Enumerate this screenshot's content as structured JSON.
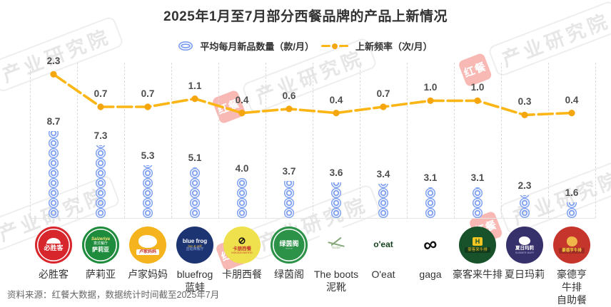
{
  "title": "2025年1月至7月部分西餐品牌的产品上新情况",
  "legend": {
    "series1_label": "平均每月新品数量（款/月）",
    "series2_label": "上新频率（次/月）"
  },
  "source": "资料来源：红餐大数据，数据统计时间截至2025年7月",
  "watermark": {
    "logo_text": "红餐",
    "text": "产业研究院"
  },
  "colors": {
    "ring_blue": "#7B9EF0",
    "line_orange": "#FBB615",
    "dot_orange": "#F6A60D",
    "grid": "#DBDBDB",
    "text_dark": "#333333",
    "value_label": "#4D4D4D"
  },
  "chart_data": {
    "type": "line",
    "note": "pictogram column chart (stacked blue rings) + dashed orange line, dual series",
    "categories": [
      "必胜客",
      "萨莉亚",
      "卢家妈妈",
      "bluefrog蓝蛙",
      "卡朋西餐",
      "绿茵阁",
      "The boots泥靴",
      "O'eat",
      "gaga",
      "豪客来牛排",
      "夏日玛莉",
      "豪德亨牛排自助餐厅"
    ],
    "series": [
      {
        "name": "平均每月新品数量（款/月）",
        "style": "ring-pictogram",
        "values": [
          8.7,
          7.3,
          5.3,
          5.1,
          4.0,
          3.7,
          3.6,
          3.4,
          3.1,
          3.1,
          2.3,
          1.6
        ]
      },
      {
        "name": "上新频率（次/月）",
        "style": "dashed-line",
        "values": [
          2.3,
          0.7,
          0.7,
          1.1,
          0.4,
          0.6,
          0.4,
          0.7,
          1.0,
          1.0,
          0.3,
          0.4
        ]
      }
    ],
    "grid": "vertical-dashed",
    "legend_position": "top-center"
  },
  "brands": [
    {
      "label": "必胜客",
      "logo": {
        "bg": "#D7262C",
        "ring": true,
        "items": [
          {
            "shape": "arc",
            "c": "#ffffff",
            "w": 20,
            "h": 8
          },
          {
            "t": "必胜客",
            "c": "#ffffff",
            "s": 9,
            "b": 1
          }
        ]
      }
    },
    {
      "label": "萨莉亚",
      "logo": {
        "bg": "#1E8C3C",
        "ring": true,
        "items": [
          {
            "t": "Saizeriya",
            "c": "#FFE67A",
            "s": 6,
            "b": 1,
            "it": 1
          },
          {
            "t": "意式餐厅",
            "c": "#ffffff",
            "s": 5
          },
          {
            "t": "萨莉亚",
            "c": "#ffffff",
            "s": 8,
            "b": 1
          }
        ]
      }
    },
    {
      "label": "卢家妈妈",
      "logo": {
        "bg": "#F5B41D",
        "items": [
          {
            "shape": "blob",
            "c": "#ffffff",
            "w": 26,
            "h": 18
          },
          {
            "t": "卢家妈妈",
            "c": "#C5352C",
            "s": 6,
            "b": 1,
            "bg": "#ffffff"
          }
        ]
      }
    },
    {
      "label": "bluefrog\n蓝蛙",
      "logo": {
        "bg": "#1D3473",
        "items": [
          {
            "t": "blue frog",
            "c": "#ffffff",
            "s": 8,
            "b": 1
          },
          {
            "t": "bar & grill",
            "c": "#F2C230",
            "s": 4.5
          },
          {
            "t": "蓝蛙西餐厅",
            "c": "#8FA6DD",
            "s": 5
          }
        ]
      }
    },
    {
      "label": "卡朋西餐",
      "logo": {
        "bg": "#EFE04E",
        "items": [
          {
            "t": "⊘",
            "c": "#111111",
            "s": 13,
            "b": 1
          },
          {
            "t": "卡朋西餐",
            "c": "#C5352C",
            "s": 6.5,
            "b": 1
          },
          {
            "t": "KOKOON BISTRO",
            "c": "#C5352C",
            "s": 3.5
          }
        ]
      }
    },
    {
      "label": "绿茵阁",
      "logo": {
        "bg": "#2B9247",
        "ring": true,
        "items": [
          {
            "t": "绿茵阁",
            "c": "#ffffff",
            "s": 9,
            "b": 1
          },
          {
            "t": "▪ ▪ ▪ ▪",
            "c": "#ffffff",
            "s": 4
          }
        ]
      }
    },
    {
      "label": "The boots\n泥靴",
      "logo": {
        "bg": "#ffffff",
        "items": [
          {
            "shape": "bar",
            "c": "#86A878",
            "w": 18,
            "h": 2,
            "r": -38
          },
          {
            "shape": "bar",
            "c": "#86A878",
            "w": 24,
            "h": 2,
            "r": 14
          },
          {
            "t": "\"boots\"",
            "c": "#9AB08F",
            "s": 4.5
          }
        ]
      }
    },
    {
      "label": "O'eat",
      "logo": {
        "bg": "#ffffff",
        "items": [
          {
            "t": "o'eat",
            "c": "#17421F",
            "s": 12,
            "b": 1
          }
        ]
      }
    },
    {
      "label": "gaga",
      "logo": {
        "bg": "#ffffff",
        "items": [
          {
            "t": "∞",
            "c": "#101010",
            "s": 27,
            "b": 1,
            "r": -12
          }
        ]
      }
    },
    {
      "label": "豪客来牛排",
      "logo": {
        "bg": "#17522A",
        "items": [
          {
            "t": "H",
            "c": "#17522A",
            "s": 9,
            "b": 1,
            "bg": "#F3C622"
          },
          {
            "t": "豪客来牛排",
            "c": "#F3C622",
            "s": 5.5,
            "bg": "#12391E"
          }
        ]
      }
    },
    {
      "label": "夏日玛莉",
      "logo": {
        "bg": "#37316B",
        "items": [
          {
            "shape": "blob",
            "c": "#ffffff",
            "w": 16,
            "h": 12
          },
          {
            "t": "夏日玛莉",
            "c": "#ffffff",
            "s": 6.5,
            "b": 1
          },
          {
            "t": "SUMMER MARY",
            "c": "#B9B3DE",
            "s": 3.5
          }
        ]
      }
    },
    {
      "label": "豪德亨牛排\n自助餐厅",
      "logo": {
        "bg": "#C5352C",
        "items": [
          {
            "shape": "blob",
            "c": "#F0B64A",
            "w": 15,
            "h": 14
          },
          {
            "t": "豪德亨牛排",
            "c": "#F4D03F",
            "s": 5.5,
            "b": 1,
            "bg": "#9E2B24"
          }
        ]
      }
    }
  ]
}
